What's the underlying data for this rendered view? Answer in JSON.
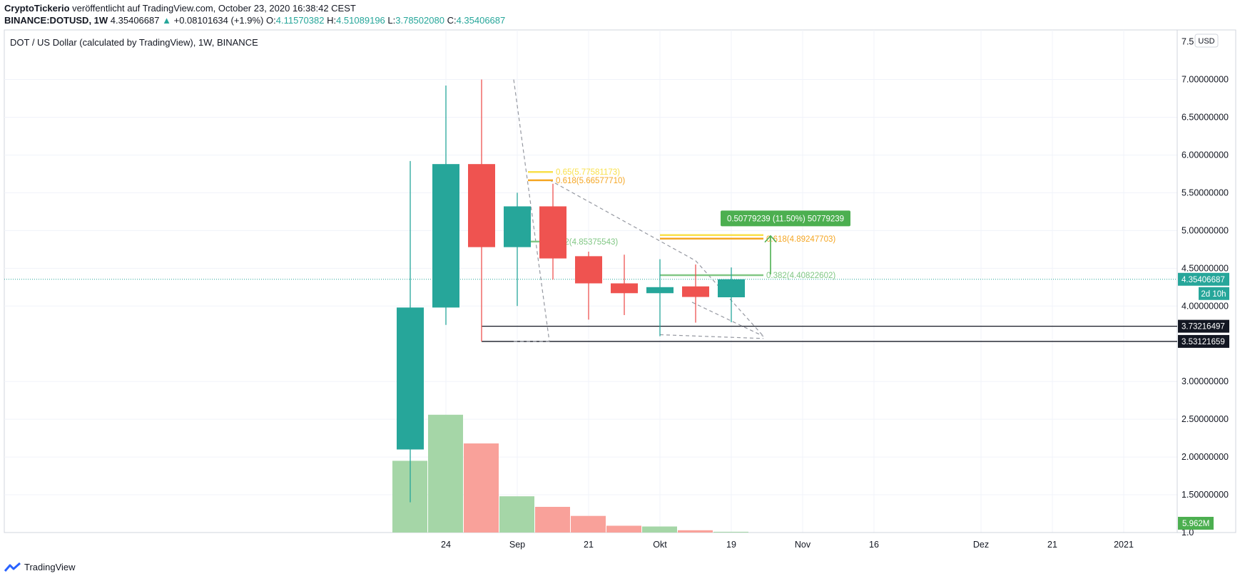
{
  "header": {
    "publisher": "CryptoTickerio",
    "published_text": "veröffentlicht auf TradingView.com, October 23, 2020 16:38:42 CEST",
    "symbol": "BINANCE:DOTUSD, 1W",
    "last": "4.35406687",
    "change": "+0.08101634 (+1.9%)",
    "o_label": "O:",
    "o_value": "4.11570382",
    "h_label": "H:",
    "h_value": "4.51089196",
    "l_label": "L:",
    "l_value": "3.78502080",
    "c_label": "C:",
    "c_value": "4.35406687"
  },
  "footer": {
    "brand": "TradingView"
  },
  "chart_data": {
    "type": "candlestick",
    "title": "DOT / US Dollar (calculated by TradingView), 1W, BINANCE",
    "currency_badge": "USD",
    "ylim": [
      1.0,
      7.6
    ],
    "y_ticks": [
      7.0,
      6.5,
      6.0,
      5.5,
      5.0,
      4.5,
      4.0,
      3.0,
      2.5,
      2.0,
      1.5
    ],
    "y_tick_labels": [
      "7.00000000",
      "6.50000000",
      "6.00000000",
      "5.50000000",
      "5.00000000",
      "4.50000000",
      "4.00000000",
      "3.00000000",
      "2.50000000",
      "2.00000000",
      "1.50000000"
    ],
    "y_tick_partial_top": "7.5",
    "y_tick_partial_bottom": "1.0",
    "x_ticks": [
      {
        "bar": 1.0,
        "label": "24"
      },
      {
        "bar": 3.0,
        "label": "Sep"
      },
      {
        "bar": 5.0,
        "label": "21"
      },
      {
        "bar": 7.0,
        "label": "Okt"
      },
      {
        "bar": 9.0,
        "label": "19"
      },
      {
        "bar": 11.0,
        "label": "Nov"
      },
      {
        "bar": 13.0,
        "label": "16"
      },
      {
        "bar": 16.0,
        "label": "Dez"
      },
      {
        "bar": 18.0,
        "label": "21"
      },
      {
        "bar": 20.0,
        "label": "2021"
      }
    ],
    "candles": [
      {
        "o": 2.1,
        "h": 5.92,
        "l": 1.4,
        "c": 3.98
      },
      {
        "o": 3.98,
        "h": 6.92,
        "l": 3.75,
        "c": 5.88
      },
      {
        "o": 5.88,
        "h": 7.0,
        "l": 3.53,
        "c": 4.78
      },
      {
        "o": 4.78,
        "h": 5.5,
        "l": 4.0,
        "c": 5.32
      },
      {
        "o": 5.32,
        "h": 5.62,
        "l": 4.35,
        "c": 4.63
      },
      {
        "o": 4.66,
        "h": 4.72,
        "l": 3.82,
        "c": 4.3
      },
      {
        "o": 4.3,
        "h": 4.68,
        "l": 3.88,
        "c": 4.17
      },
      {
        "o": 4.17,
        "h": 4.62,
        "l": 3.6,
        "c": 4.25
      },
      {
        "o": 4.26,
        "h": 4.55,
        "l": 3.78,
        "c": 4.12
      },
      {
        "o": 4.11570382,
        "h": 4.51089196,
        "l": 3.7850208,
        "c": 4.35406687
      }
    ],
    "volume": {
      "label": "5.962M",
      "ymax": 2.6,
      "values": [
        1.95,
        2.56,
        2.18,
        1.48,
        1.34,
        1.22,
        1.09,
        1.08,
        1.03,
        1.01
      ],
      "directions": [
        "up",
        "up",
        "down",
        "up",
        "down",
        "down",
        "down",
        "up",
        "down",
        "up"
      ]
    },
    "last_price_label": "4.35406687",
    "countdown_label": "2d 10h",
    "hlines": [
      {
        "value": 3.73216497,
        "label": "3.73216497",
        "from_bar": 2
      },
      {
        "value": 3.53121659,
        "label": "3.53121659",
        "from_bar": 2
      }
    ],
    "fib_levels": [
      {
        "value": 5.77581173,
        "label": "0.65(5.77581173)",
        "color": "#f9e04b",
        "from": 3.3,
        "to": 4.0
      },
      {
        "value": 5.6657771,
        "label": "0.618(5.66577710)",
        "color": "#f5a623",
        "from": 3.3,
        "to": 4.0
      },
      {
        "value": 4.85375543,
        "label": "0.382(4.85375543)",
        "color": "#81c784",
        "from": 3.3,
        "to": 3.8
      },
      {
        "value": 4.94,
        "label": "",
        "color": "#f9e04b",
        "from": 7.0,
        "to": 9.9
      },
      {
        "value": 4.89247703,
        "label": "0.618(4.89247703)",
        "color": "#f5a623",
        "from": 7.0,
        "to": 9.9
      },
      {
        "value": 4.40822602,
        "label": "0.382(4.40822602)",
        "color": "#81c784",
        "from": 7.0,
        "to": 9.9
      }
    ],
    "projection_label": "0.50779239 (11.50%) 50779239",
    "projection_from": 4.42,
    "projection_to": 4.93
  }
}
